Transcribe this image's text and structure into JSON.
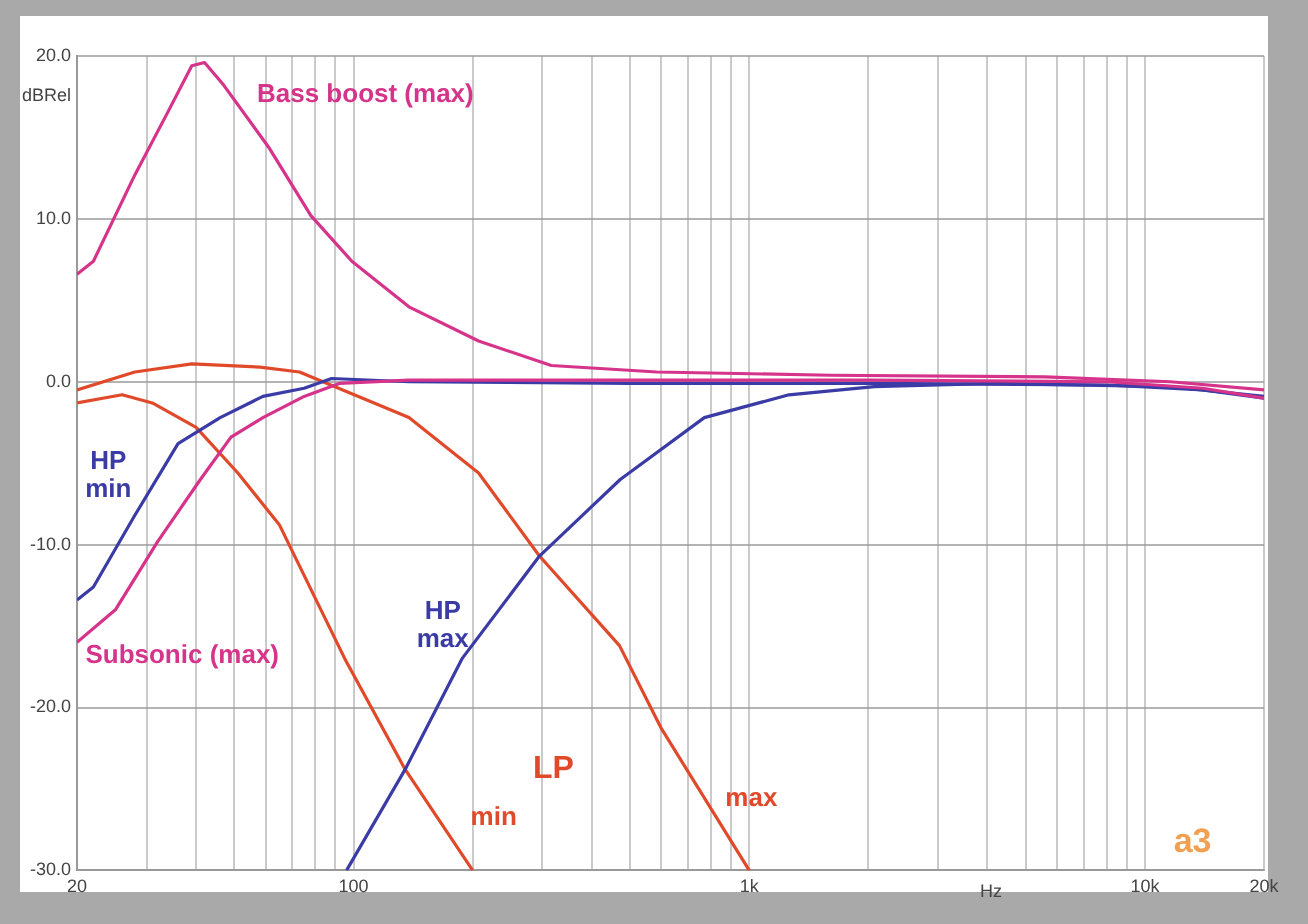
{
  "chart_data": {
    "type": "line",
    "xlabel": "Hz",
    "ylabel": "dBRel",
    "log": "x",
    "grid": true,
    "legend": false,
    "marker": "none",
    "line_style": "solid",
    "xlim": [
      20,
      20000
    ],
    "ylim": [
      -30,
      20
    ],
    "xticks": [
      20,
      {
        "value": 30,
        "label": null
      },
      {
        "value": 40,
        "label": null
      },
      {
        "value": 50,
        "label": null
      },
      {
        "value": 60,
        "label": null
      },
      {
        "value": 70,
        "label": null
      },
      {
        "value": 80,
        "label": null
      },
      {
        "value": 90,
        "label": null
      },
      100,
      {
        "value": 200,
        "label": null
      },
      {
        "value": 300,
        "label": null
      },
      {
        "value": 400,
        "label": null
      },
      {
        "value": 500,
        "label": null
      },
      {
        "value": 600,
        "label": null
      },
      {
        "value": 700,
        "label": null
      },
      {
        "value": 800,
        "label": null
      },
      {
        "value": 900,
        "label": null
      },
      {
        "value": 1000,
        "label": "1k"
      },
      {
        "value": 2000,
        "label": null
      },
      {
        "value": 3000,
        "label": null
      },
      {
        "value": 4000,
        "label": null
      },
      {
        "value": 5000,
        "label": null
      },
      {
        "value": 6000,
        "label": null
      },
      {
        "value": 7000,
        "label": null
      },
      {
        "value": 8000,
        "label": null
      },
      {
        "value": 9000,
        "label": null
      },
      {
        "value": 10000,
        "label": "10k"
      },
      {
        "value": 20000,
        "label": "20k"
      }
    ],
    "yticks": [
      {
        "value": -30,
        "label": "-30.0"
      },
      {
        "value": -20,
        "label": "-20.0"
      },
      {
        "value": -10,
        "label": "-10.0"
      },
      {
        "value": 0,
        "label": "0.0"
      },
      {
        "value": 10,
        "label": "10.0"
      },
      {
        "value": 20,
        "label": "20.0"
      }
    ],
    "annotations": [
      "LP",
      "a3"
    ],
    "series": [
      {
        "name": "Bass boost (max)",
        "color": "#d6338a",
        "x": [
          20,
          22,
          28,
          34,
          39,
          42,
          47,
          61,
          78,
          99,
          138,
          207,
          316,
          584,
          1600,
          5600,
          11600,
          20000
        ],
        "values": [
          6.6,
          7.4,
          12.7,
          16.6,
          19.4,
          19.6,
          18.2,
          14.4,
          10.2,
          7.4,
          4.6,
          2.5,
          1.0,
          0.6,
          0.4,
          0.3,
          0.0,
          -0.5
        ]
      },
      {
        "name": "Subsonic (max)",
        "color": "#d6338a",
        "x": [
          20,
          25,
          32,
          41,
          49,
          59,
          75,
          92,
          138,
          500,
          2000,
          8000,
          14000,
          20000
        ],
        "values": [
          -16.0,
          -14.0,
          -9.8,
          -6.0,
          -3.4,
          -2.2,
          -0.9,
          -0.1,
          0.1,
          0.1,
          0.1,
          0.0,
          -0.4,
          -1.0
        ]
      },
      {
        "name": "HP min",
        "color": "#3b3ba6",
        "x": [
          20,
          22,
          28,
          36,
          46,
          59,
          75,
          88,
          138,
          500,
          2000,
          8000,
          14000,
          20000
        ],
        "values": [
          -13.4,
          -12.6,
          -8.2,
          -3.8,
          -2.2,
          -0.9,
          -0.4,
          0.2,
          0.0,
          -0.1,
          -0.1,
          -0.2,
          -0.5,
          -1.0
        ]
      },
      {
        "name": "HP max",
        "color": "#3b3ba6",
        "x": [
          96,
          135,
          188,
          295,
          472,
          770,
          1260,
          2070,
          4160,
          11600,
          20000
        ],
        "values": [
          -30.0,
          -23.8,
          -17.0,
          -10.7,
          -6.0,
          -2.2,
          -0.8,
          -0.3,
          -0.1,
          -0.3,
          -0.9
        ]
      },
      {
        "name": "min",
        "color": "#e04a2a",
        "x": [
          20,
          26,
          31,
          40,
          51,
          65,
          95,
          135,
          200
        ],
        "values": [
          -1.3,
          -0.8,
          -1.3,
          -2.8,
          -5.6,
          -8.8,
          -17.0,
          -23.8,
          -30.0
        ]
      },
      {
        "name": "max",
        "color": "#e04a2a",
        "x": [
          20,
          28,
          39,
          58,
          73,
          138,
          207,
          295,
          470,
          600,
          1000
        ],
        "values": [
          -0.5,
          0.6,
          1.1,
          0.9,
          0.6,
          -2.2,
          -5.6,
          -10.7,
          -16.2,
          -21.3,
          -30.0
        ]
      }
    ]
  }
}
